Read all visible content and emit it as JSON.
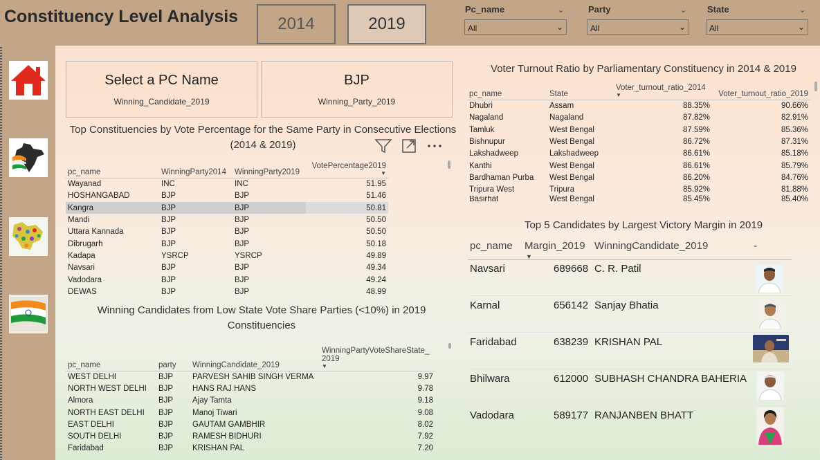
{
  "header": {
    "title": "Constituency Level Analysis",
    "years": [
      "2014",
      "2019"
    ],
    "slicers": [
      {
        "label": "Pc_name",
        "value": "All"
      },
      {
        "label": "Party",
        "value": "All"
      },
      {
        "label": "State",
        "value": "All"
      }
    ]
  },
  "nav": {
    "items": [
      "home-icon",
      "india-map-icon",
      "state-map-icon",
      "flag-icon"
    ]
  },
  "cards": [
    {
      "value": "Select a PC Name",
      "label": "Winning_Candidate_2019"
    },
    {
      "value": "BJP",
      "label": "Winning_Party_2019"
    }
  ],
  "top_vote": {
    "title": "Top Constituencies by Vote Percentage for the Same Party in Consecutive Elections (2014 & 2019)",
    "columns": [
      "pc_name",
      "WinningParty2014",
      "WinningParty2019",
      "VotePercentage2019"
    ],
    "rows": [
      [
        "Wayanad",
        "INC",
        "INC",
        "51.95"
      ],
      [
        "HOSHANGABAD",
        "BJP",
        "BJP",
        "51.46"
      ],
      [
        "Kangra",
        "BJP",
        "BJP",
        "50.81"
      ],
      [
        "Mandi",
        "BJP",
        "BJP",
        "50.50"
      ],
      [
        "Uttara Kannada",
        "BJP",
        "BJP",
        "50.50"
      ],
      [
        "Dibrugarh",
        "BJP",
        "BJP",
        "50.18"
      ],
      [
        "Kadapa",
        "YSRCP",
        "YSRCP",
        "49.89"
      ],
      [
        "Navsari",
        "BJP",
        "BJP",
        "49.34"
      ],
      [
        "Vadodara",
        "BJP",
        "BJP",
        "49.24"
      ],
      [
        "DEWAS",
        "BJP",
        "BJP",
        "48.99"
      ]
    ]
  },
  "low_share": {
    "title": "Winning Candidates from Low State Vote Share Parties (<10%) in 2019 Constituencies",
    "columns": [
      "pc_name",
      "party",
      "WinningCandidate_2019",
      "WinningPartyVoteShareState_2019"
    ],
    "rows": [
      [
        "WEST DELHI",
        "BJP",
        "PARVESH SAHIB SINGH VERMA",
        "9.97"
      ],
      [
        "NORTH WEST DELHI",
        "BJP",
        "HANS RAJ HANS",
        "9.78"
      ],
      [
        "Almora",
        "BJP",
        "Ajay Tamta",
        "9.18"
      ],
      [
        "NORTH EAST DELHI",
        "BJP",
        "Manoj Tiwari",
        "9.08"
      ],
      [
        "EAST DELHI",
        "BJP",
        "GAUTAM GAMBHIR",
        "8.02"
      ],
      [
        "SOUTH DELHI",
        "BJP",
        "RAMESH BIDHURI",
        "7.92"
      ],
      [
        "Faridabad",
        "BJP",
        "KRISHAN PAL",
        "7.20"
      ]
    ]
  },
  "turnout": {
    "title": "Voter Turnout Ratio by Parliamentary Constituency in 2014 & 2019",
    "columns": [
      "pc_name",
      "State",
      "Voter_turnout_ratio_2014",
      "Voter_turnout_ratio_2019"
    ],
    "rows": [
      [
        "Dhubri",
        "Assam",
        "88.35%",
        "90.66%"
      ],
      [
        "Nagaland",
        "Nagaland",
        "87.82%",
        "82.91%"
      ],
      [
        "Tamluk",
        "West Bengal",
        "87.59%",
        "85.36%"
      ],
      [
        "Bishnupur",
        "West Bengal",
        "86.72%",
        "87.31%"
      ],
      [
        "Lakshadweep",
        "Lakshadweep",
        "86.61%",
        "85.18%"
      ],
      [
        "Kanthi",
        "West Bengal",
        "86.61%",
        "85.79%"
      ],
      [
        "Bardhaman Purba",
        "West Bengal",
        "86.20%",
        "84.76%"
      ],
      [
        "Tripura West",
        "Tripura",
        "85.92%",
        "81.88%"
      ],
      [
        "Basirhat",
        "West Bengal",
        "85.45%",
        "85.40%"
      ]
    ]
  },
  "margin": {
    "title": "Top 5 Candidates by Largest Victory Margin in 2019",
    "columns": [
      "pc_name",
      "Margin_2019",
      "WinningCandidate_2019",
      "-"
    ],
    "rows": [
      [
        "Navsari",
        "689668",
        "C. R. Patil"
      ],
      [
        "Karnal",
        "656142",
        "Sanjay Bhatia"
      ],
      [
        "Faridabad",
        "638239",
        "KRISHAN PAL"
      ],
      [
        "Bhilwara",
        "612000",
        "SUBHASH CHANDRA BAHERIA"
      ],
      [
        "Vadodara",
        "589177",
        "RANJANBEN BHATT"
      ]
    ]
  },
  "colors": {
    "header_bg": "#c3a587",
    "accent": "#e02a1f",
    "selected_row": "#cfcfcf"
  }
}
